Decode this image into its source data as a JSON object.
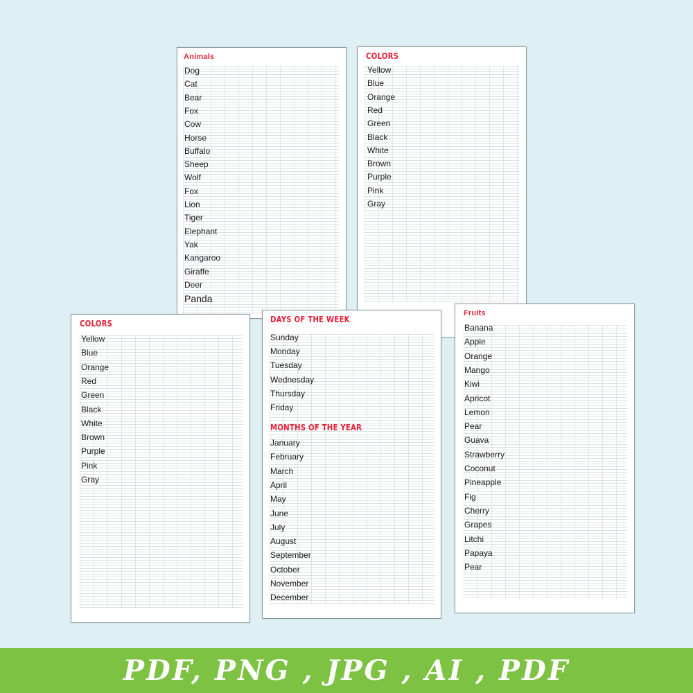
{
  "pages": {
    "animals": {
      "title": "Animals",
      "items": [
        "Dog",
        "Cat",
        "Bear",
        "Fox",
        "Cow",
        "Horse",
        "Buffalo",
        "Sheep",
        "Wolf",
        "Fox",
        "Lion",
        "Tiger",
        "Elephant",
        "Yak",
        "Kangaroo",
        "Giraffe",
        "Deer",
        "Panda"
      ]
    },
    "colors_back": {
      "title": "COLORS",
      "items": [
        "Yellow",
        "Blue",
        "Orange",
        "Red",
        "Green",
        "Black",
        "White",
        "Brown",
        "Purple",
        "Pink",
        "Gray"
      ]
    },
    "colors_front": {
      "title": "COLORS",
      "items": [
        "Yellow",
        "Blue",
        "Orange",
        "Red",
        "Green",
        "Black",
        "White",
        "Brown",
        "Purple",
        "Pink",
        "Gray"
      ]
    },
    "days_months": {
      "days_title": "DAYS OF THE WEEK",
      "days": [
        "Sunday",
        "Monday",
        "Tuesday",
        "Wednesday",
        "Thursday",
        "Friday"
      ],
      "months_title": "MONTHS OF THE YEAR",
      "months": [
        "January",
        "February",
        "March",
        "April",
        "May",
        "June",
        "July",
        "August",
        "September",
        "October",
        "November",
        "December"
      ]
    },
    "fruits": {
      "title": "Fruits",
      "items": [
        "Banana",
        "Apple",
        "Orange",
        "Mango",
        "Kiwi",
        "Apricot",
        "Lemon",
        "Pear",
        "Guava",
        "Strawberry",
        "Coconut",
        "Pineapple",
        "Fig",
        "Cherry",
        "Grapes",
        "Litchi",
        "Papaya",
        "Pear"
      ]
    }
  },
  "banner": {
    "text": "PDF, PNG , JPG , AI , PDF"
  },
  "colors": {
    "background": "#dff0f5",
    "title_red": "#e3243b",
    "banner_green": "#7dc242"
  }
}
